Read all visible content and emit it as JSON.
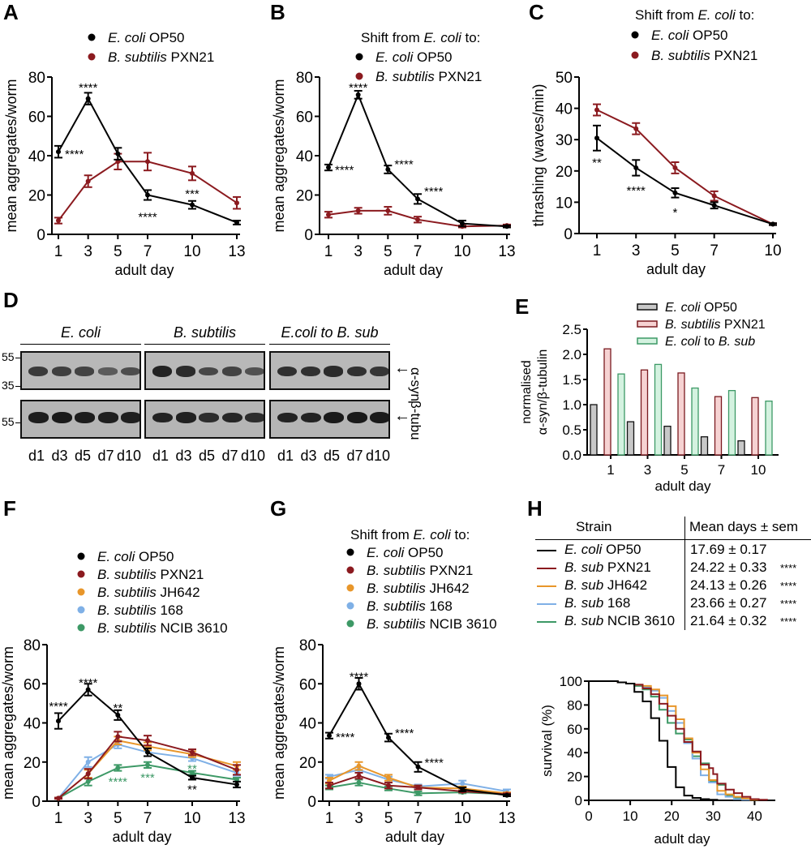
{
  "panels": {
    "A": "A",
    "B": "B",
    "C": "C",
    "D": "D",
    "E": "E",
    "F": "F",
    "G": "G",
    "H": "H"
  },
  "colors": {
    "ecoli": "#000000",
    "pxn21": "#8b1a1f",
    "jh642": "#e8962a",
    "b168": "#7fb0e6",
    "ncib3610": "#3d9966",
    "bar_ecoli_fill": "#c8c8c8",
    "bar_pxn21_fill": "#f6d2d2",
    "bar_shift_fill": "#d4f2e0",
    "bar_shift_stroke": "#3d9966",
    "bar_pxn21_stroke": "#7a1a1f"
  },
  "blot": {
    "groups": [
      "E. coli",
      "B. subtilis",
      "E.coli to B. sub"
    ],
    "markers_top": [
      "55",
      "35"
    ],
    "markers_bottom": [
      "55"
    ],
    "labels": [
      "α-syn",
      "β-tubu"
    ],
    "lanes": [
      "d1",
      "d3",
      "d5",
      "d7",
      "d10"
    ],
    "arrow": "←"
  },
  "table_H": {
    "headers": [
      "Strain",
      "Mean days ± sem"
    ],
    "rows": [
      {
        "italic": "E. coli",
        "rest": " OP50",
        "value": "17.69 ± 0.17",
        "sig": "",
        "color": "#000000"
      },
      {
        "italic": "B. sub",
        "rest": " PXN21",
        "value": "24.22 ± 0.33",
        "sig": "****",
        "color": "#8b1a1f"
      },
      {
        "italic": "B. sub",
        "rest": " JH642",
        "value": "24.13 ± 0.26",
        "sig": "****",
        "color": "#e8962a"
      },
      {
        "italic": "B. sub",
        "rest": " 168",
        "value": "23.66 ± 0.27",
        "sig": "****",
        "color": "#7fb0e6"
      },
      {
        "italic": "B. sub",
        "rest": " NCIB 3610",
        "value": "21.64 ± 0.32",
        "sig": "****",
        "color": "#3d9966"
      }
    ]
  },
  "chart_data": [
    {
      "id": "A",
      "type": "line",
      "legend_title": "",
      "legend": [
        {
          "italic": "E. coli",
          "rest": " OP50"
        },
        {
          "italic": "B. subtilis",
          "rest": " PXN21"
        }
      ],
      "xlabel": "adult day",
      "ylabel": "mean aggregates/worm",
      "x": [
        1,
        3,
        5,
        7,
        10,
        13
      ],
      "xticks": [
        "1",
        "3",
        "5",
        "7",
        "10",
        "13"
      ],
      "ylim": [
        0,
        80
      ],
      "yticks": [
        0,
        20,
        40,
        60,
        80
      ],
      "series": [
        {
          "name": "E. coli OP50",
          "color": "#000000",
          "values": [
            42,
            69,
            41,
            20,
            15,
            6
          ],
          "err": [
            3,
            3,
            3,
            2.5,
            2,
            1
          ]
        },
        {
          "name": "B. subtilis PXN21",
          "color": "#8b1a1f",
          "values": [
            7,
            27,
            37,
            37,
            31,
            16
          ],
          "err": [
            1.5,
            3,
            4,
            4.5,
            3.5,
            3
          ]
        }
      ],
      "annotations": [
        {
          "text": "****",
          "x": 1,
          "y": 42,
          "pos": "right",
          "color": "#000000"
        },
        {
          "text": "****",
          "x": 3,
          "y": 75,
          "pos": "above",
          "color": "#000000"
        },
        {
          "text": "****",
          "x": 7,
          "y": 11,
          "pos": "below",
          "color": "#000000"
        },
        {
          "text": "***",
          "x": 10,
          "y": 21,
          "pos": "above",
          "color": "#000000"
        }
      ]
    },
    {
      "id": "B",
      "type": "line",
      "legend_title": "Shift from E. coli to:",
      "legend": [
        {
          "italic": "E. coli",
          "rest": " OP50"
        },
        {
          "italic": "B. subtilis",
          "rest": " PXN21"
        }
      ],
      "xlabel": "adult day",
      "ylabel": "mean aggregates/worm",
      "x": [
        1,
        3,
        5,
        7,
        10,
        13
      ],
      "xticks": [
        "1",
        "3",
        "5",
        "7",
        "10",
        "13"
      ],
      "ylim": [
        0,
        80
      ],
      "yticks": [
        0,
        20,
        40,
        60,
        80
      ],
      "series": [
        {
          "name": "E. coli OP50",
          "color": "#000000",
          "values": [
            34,
            71,
            33,
            18,
            5.5,
            4
          ],
          "err": [
            1.5,
            2,
            2,
            2.5,
            1.5,
            0.5
          ]
        },
        {
          "name": "B. subtilis PXN21",
          "color": "#8b1a1f",
          "values": [
            10,
            12,
            12,
            7.5,
            4,
            4.5
          ],
          "err": [
            1.5,
            1.5,
            2,
            1.5,
            0.5,
            0.5
          ]
        }
      ],
      "annotations": [
        {
          "text": "****",
          "x": 1,
          "y": 34,
          "pos": "right",
          "color": "#000000"
        },
        {
          "text": "****",
          "x": 3,
          "y": 75,
          "pos": "above",
          "color": "#000000"
        },
        {
          "text": "****",
          "x": 5,
          "y": 37,
          "pos": "right",
          "color": "#000000"
        },
        {
          "text": "****",
          "x": 7,
          "y": 23,
          "pos": "right",
          "color": "#000000"
        }
      ]
    },
    {
      "id": "C",
      "type": "line",
      "legend_title": "Shift from E. coli to:",
      "legend": [
        {
          "italic": "E. coli",
          "rest": " OP50"
        },
        {
          "italic": "B. subtilis",
          "rest": " PXN21"
        }
      ],
      "xlabel": "adult day",
      "ylabel": "thrashing (waves/min)",
      "x": [
        1,
        3,
        5,
        7,
        10
      ],
      "xticks": [
        "1",
        "3",
        "5",
        "7",
        "10"
      ],
      "ylim": [
        0,
        50
      ],
      "yticks": [
        0,
        10,
        20,
        30,
        40,
        50
      ],
      "series": [
        {
          "name": "E. coli OP50",
          "color": "#000000",
          "values": [
            30.5,
            21,
            13,
            9,
            3
          ],
          "err": [
            4,
            2.5,
            1.5,
            1,
            0.3
          ]
        },
        {
          "name": "B. subtilis PXN21",
          "color": "#8b1a1f",
          "values": [
            39.5,
            33.5,
            21,
            12,
            3
          ],
          "err": [
            1.8,
            1.8,
            1.8,
            1.5,
            0.3
          ]
        }
      ],
      "annotations": [
        {
          "text": "**",
          "x": 1,
          "y": 24,
          "pos": "below",
          "color": "#000000"
        },
        {
          "text": "****",
          "x": 3,
          "y": 15,
          "pos": "below",
          "color": "#000000"
        },
        {
          "text": "*",
          "x": 5,
          "y": 8,
          "pos": "below",
          "color": "#000000"
        }
      ]
    },
    {
      "id": "E",
      "type": "bar",
      "legend": [
        {
          "italic": "E. coli",
          "rest": " OP50"
        },
        {
          "italic": "B. subtilis",
          "rest": " PXN21"
        },
        {
          "italic": "E. coli",
          "rest": " to ",
          "italic2": "B. sub"
        }
      ],
      "xlabel": "adult day",
      "ylabel": "normalised α-syn/β-tubulin",
      "categories": [
        "1",
        "3",
        "5",
        "7",
        "10"
      ],
      "ylim": [
        0,
        2.5
      ],
      "yticks": [
        "0.0",
        "0.5",
        "1.0",
        "1.5",
        "2.0",
        "2.5"
      ],
      "series": [
        {
          "name": "E. coli OP50",
          "values": [
            1.0,
            0.66,
            0.57,
            0.36,
            0.28
          ]
        },
        {
          "name": "B. subtilis PXN21",
          "values": [
            2.11,
            1.69,
            1.63,
            1.16,
            1.14
          ]
        },
        {
          "name": "E. coli to B. sub",
          "values": [
            1.61,
            1.8,
            1.33,
            1.28,
            1.07
          ]
        }
      ]
    },
    {
      "id": "F",
      "type": "line",
      "legend_title": "",
      "legend": [
        {
          "italic": "E. coli",
          "rest": " OP50"
        },
        {
          "italic": "B. subtilis",
          "rest": " PXN21"
        },
        {
          "italic": "B. subtilis",
          "rest": " JH642"
        },
        {
          "italic": "B. subtilis",
          "rest": " 168"
        },
        {
          "italic": "B. subtilis",
          "rest": " NCIB 3610"
        }
      ],
      "xlabel": "adult day",
      "ylabel": "mean aggregates/worm",
      "x": [
        1,
        3,
        5,
        7,
        10,
        13
      ],
      "xticks": [
        "1",
        "3",
        "5",
        "7",
        "10",
        "13"
      ],
      "ylim": [
        0,
        80
      ],
      "yticks": [
        0,
        20,
        40,
        60,
        80
      ],
      "series": [
        {
          "name": "E. coli OP50",
          "color": "#000000",
          "values": [
            41,
            57,
            44,
            25,
            12,
            8.5
          ],
          "err": [
            4,
            3,
            2.5,
            2,
            1,
            1.5
          ]
        },
        {
          "name": "B. subtilis PXN21",
          "color": "#8b1a1f",
          "values": [
            1.5,
            14,
            33,
            31,
            25,
            16
          ],
          "err": [
            0.3,
            2.5,
            2.5,
            2.5,
            1.5,
            2.5
          ]
        },
        {
          "name": "B. subtilis JH642",
          "color": "#e8962a",
          "values": [
            1.5,
            14,
            31,
            28,
            24,
            18
          ],
          "err": [
            0.3,
            2,
            2,
            2,
            1.5,
            2
          ]
        },
        {
          "name": "B. subtilis 168",
          "color": "#7fb0e6",
          "values": [
            1.5,
            20,
            29,
            25,
            22,
            14.5
          ],
          "err": [
            0.3,
            2.5,
            2,
            2,
            1.5,
            1.5
          ]
        },
        {
          "name": "B. subtilis NCIB 3610",
          "color": "#3d9966",
          "values": [
            1.5,
            10,
            17,
            18.5,
            14.5,
            11
          ],
          "err": [
            0.3,
            2,
            1.5,
            1.5,
            1,
            1
          ]
        }
      ],
      "annotations": [
        {
          "text": "****",
          "x": 1,
          "y": 49,
          "pos": "above",
          "color": "#000000"
        },
        {
          "text": "****",
          "x": 3,
          "y": 61,
          "pos": "above",
          "color": "#000000"
        },
        {
          "text": "**",
          "x": 5,
          "y": 48,
          "pos": "above",
          "color": "#000000"
        },
        {
          "text": "****",
          "x": 5,
          "y": 12,
          "pos": "below",
          "color": "#3d9966"
        },
        {
          "text": "***",
          "x": 7,
          "y": 14,
          "pos": "below",
          "color": "#3d9966"
        },
        {
          "text": "**",
          "x": 10,
          "y": 17,
          "pos": "above",
          "color": "#3d9966"
        },
        {
          "text": "**",
          "x": 10,
          "y": 8,
          "pos": "below",
          "color": "#000000"
        }
      ]
    },
    {
      "id": "G",
      "type": "line",
      "legend_title": "Shift from E. coli to:",
      "legend": [
        {
          "italic": "E. coli",
          "rest": " OP50"
        },
        {
          "italic": "B. subtilis",
          "rest": " PXN21"
        },
        {
          "italic": "B. subtilis",
          "rest": " JH642"
        },
        {
          "italic": "B. subtilis",
          "rest": " 168"
        },
        {
          "italic": "B. subtilis",
          "rest": " NCIB 3610"
        }
      ],
      "xlabel": "adult day",
      "ylabel": "mean aggregates/worm",
      "x": [
        1,
        3,
        5,
        7,
        10,
        13
      ],
      "xticks": [
        "1",
        "3",
        "5",
        "7",
        "10",
        "13"
      ],
      "ylim": [
        0,
        80
      ],
      "yticks": [
        0,
        20,
        40,
        60,
        80
      ],
      "series": [
        {
          "name": "E. coli OP50",
          "color": "#000000",
          "values": [
            33.5,
            60,
            32.5,
            17.5,
            6,
            3
          ],
          "err": [
            1.5,
            3,
            2,
            2.5,
            1,
            0.5
          ]
        },
        {
          "name": "B. subtilis PXN21",
          "color": "#8b1a1f",
          "values": [
            8,
            13,
            8,
            7,
            5,
            3.5
          ],
          "err": [
            1.5,
            1.5,
            1.5,
            1,
            0.5,
            0.5
          ]
        },
        {
          "name": "B. subtilis JH642",
          "color": "#e8962a",
          "values": [
            10.5,
            18,
            12,
            7,
            6.5,
            4
          ],
          "err": [
            1.5,
            2,
            1.5,
            1,
            1,
            0.5
          ]
        },
        {
          "name": "B. subtilis 168",
          "color": "#7fb0e6",
          "values": [
            12.5,
            16,
            11,
            7.5,
            9,
            5
          ],
          "err": [
            1,
            1.5,
            1.5,
            1,
            1.5,
            1
          ]
        },
        {
          "name": "B. subtilis NCIB 3610",
          "color": "#3d9966",
          "values": [
            7,
            9.5,
            6.5,
            4,
            4.5,
            3.5
          ],
          "err": [
            1,
            1.5,
            1,
            1,
            0.5,
            0.5
          ]
        }
      ],
      "annotations": [
        {
          "text": "****",
          "x": 1,
          "y": 34,
          "pos": "right",
          "color": "#000000"
        },
        {
          "text": "****",
          "x": 3,
          "y": 64,
          "pos": "above",
          "color": "#000000"
        },
        {
          "text": "****",
          "x": 5,
          "y": 36,
          "pos": "right",
          "color": "#000000"
        },
        {
          "text": "****",
          "x": 7,
          "y": 21,
          "pos": "right",
          "color": "#000000"
        }
      ]
    },
    {
      "id": "H",
      "type": "line",
      "subtype": "step",
      "xlabel": "adult day",
      "ylabel": "survival (%)",
      "xlim": [
        0,
        45
      ],
      "xticks": [
        0,
        10,
        20,
        30,
        40
      ],
      "ylim": [
        0,
        100
      ],
      "yticks": [
        0,
        20,
        40,
        60,
        80,
        100
      ],
      "series": [
        {
          "name": "E. coli OP50",
          "color": "#000000",
          "x": [
            0,
            5,
            7,
            9,
            11,
            13,
            15,
            17,
            19,
            21,
            23,
            25,
            27,
            29,
            31
          ],
          "y": [
            100,
            100,
            99,
            98,
            91,
            83,
            69,
            50,
            28,
            11,
            4,
            2,
            1,
            0.5,
            0
          ]
        },
        {
          "name": "B. sub PXN21",
          "color": "#8b1a1f",
          "x": [
            0,
            5,
            7,
            9,
            11,
            13,
            15,
            17,
            19,
            21,
            23,
            25,
            27,
            29,
            30,
            31,
            33,
            35,
            37,
            39,
            41,
            43
          ],
          "y": [
            100,
            100,
            99,
            98,
            97,
            94,
            89,
            81,
            71,
            60,
            49,
            41,
            30,
            27,
            22,
            14,
            9,
            6,
            3,
            1,
            0.5,
            0
          ]
        },
        {
          "name": "B. sub JH642",
          "color": "#e8962a",
          "x": [
            0,
            5,
            7,
            9,
            11,
            13,
            15,
            17,
            19,
            21,
            23,
            25,
            27,
            29,
            31,
            33,
            35,
            37,
            39,
            41
          ],
          "y": [
            100,
            100,
            99,
            98,
            97,
            96,
            93,
            88,
            79,
            68,
            52,
            40,
            26,
            17,
            8,
            5,
            3,
            1.5,
            0.5,
            0
          ]
        },
        {
          "name": "B. sub 168",
          "color": "#7fb0e6",
          "x": [
            0,
            5,
            7,
            9,
            11,
            13,
            15,
            17,
            19,
            21,
            23,
            25,
            27,
            29,
            31,
            33,
            35,
            37,
            39
          ],
          "y": [
            100,
            100,
            99,
            98,
            97,
            95,
            92,
            86,
            75,
            65,
            48,
            35,
            21,
            15,
            5,
            3,
            1,
            0.5,
            0
          ]
        },
        {
          "name": "B. sub NCIB 3610",
          "color": "#3d9966",
          "x": [
            0,
            5,
            7,
            9,
            11,
            13,
            15,
            17,
            19,
            21,
            23,
            25,
            27,
            29,
            31,
            33,
            35,
            37,
            39
          ],
          "y": [
            100,
            100,
            99,
            98,
            96,
            93,
            87,
            76,
            65,
            56,
            51,
            37,
            31,
            16,
            13,
            4,
            2,
            1,
            0
          ]
        }
      ]
    }
  ]
}
